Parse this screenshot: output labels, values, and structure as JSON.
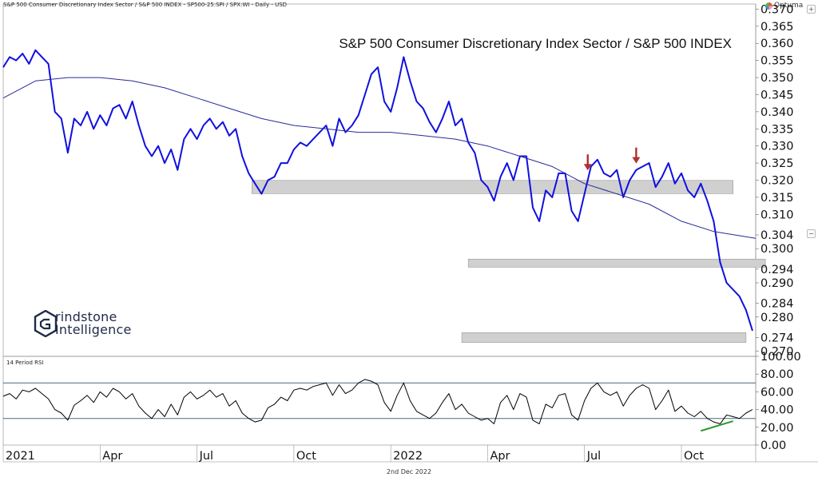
{
  "header": {
    "subtitle": "S&P 500 Consumer Discretionary Index Sector / S&P 500 INDEX - SP500-25:SPI / SPX:WI - Daily - USD",
    "brand": "Optuma"
  },
  "footer": {
    "date": "2nd Dec 2022"
  },
  "logo": {
    "line1": "rindstone",
    "line2": "Intelligence"
  },
  "side_buttons": [
    "+",
    "−"
  ],
  "colors": {
    "price": "#1010e0",
    "ma": "#2a2a9a",
    "rsi": "#000000",
    "arrow": "#b03030",
    "zone": "#d0d0d0",
    "divergence": "#2a9a2a"
  },
  "chart_data": [
    {
      "type": "line",
      "title": "S&P 500 Consumer Discretionary Index Sector / S&P 500 INDEX",
      "xlabel": "",
      "ylabel": "",
      "x_tick_labels": [
        "2021",
        "Apr",
        "Jul",
        "Oct",
        "2022",
        "Apr",
        "Jul",
        "Oct"
      ],
      "y_ticks": [
        0.37,
        0.365,
        0.36,
        0.355,
        0.35,
        0.345,
        0.34,
        0.335,
        0.33,
        0.325,
        0.32,
        0.315,
        0.31,
        0.304,
        0.3,
        0.294,
        0.29,
        0.284,
        0.28,
        0.274,
        0.27
      ],
      "y_tick_labels": [
        "0.370",
        "0.365",
        "0.360",
        "0.355",
        "0.350",
        "0.345",
        "0.340",
        "0.335",
        "0.330",
        "0.325",
        "0.320",
        "0.315",
        "0.310",
        "0.304",
        "0.300",
        "0.294",
        "0.290",
        "0.284",
        "0.280",
        "0.274",
        "0.270"
      ],
      "ylim": [
        0.2685,
        0.3715
      ],
      "xlim": [
        0,
        23.3
      ],
      "x_unit": "months since Jan 2021",
      "grid": false,
      "series": [
        {
          "name": "Ratio",
          "x": [
            0,
            0.2,
            0.4,
            0.6,
            0.8,
            1.0,
            1.2,
            1.4,
            1.6,
            1.8,
            2.0,
            2.2,
            2.4,
            2.6,
            2.8,
            3.0,
            3.2,
            3.4,
            3.6,
            3.8,
            4.0,
            4.2,
            4.4,
            4.6,
            4.8,
            5.0,
            5.2,
            5.4,
            5.6,
            5.8,
            6.0,
            6.2,
            6.4,
            6.6,
            6.8,
            7.0,
            7.2,
            7.4,
            7.6,
            7.8,
            8.0,
            8.2,
            8.4,
            8.6,
            8.8,
            9.0,
            9.2,
            9.4,
            9.6,
            9.8,
            10.0,
            10.2,
            10.4,
            10.6,
            10.8,
            11.0,
            11.2,
            11.4,
            11.6,
            11.8,
            12.0,
            12.2,
            12.4,
            12.6,
            12.8,
            13.0,
            13.2,
            13.4,
            13.6,
            13.8,
            14.0,
            14.2,
            14.4,
            14.6,
            14.8,
            15.0,
            15.2,
            15.4,
            15.6,
            15.8,
            16.0,
            16.2,
            16.4,
            16.6,
            16.8,
            17.0,
            17.2,
            17.4,
            17.6,
            17.8,
            18.0,
            18.2,
            18.4,
            18.6,
            18.8,
            19.0,
            19.2,
            19.4,
            19.6,
            19.8,
            20.0,
            20.2,
            20.4,
            20.6,
            20.8,
            21.0,
            21.2,
            21.4,
            21.6,
            21.8,
            22.0,
            22.2,
            22.4,
            22.6,
            22.8,
            23.0,
            23.2
          ],
          "values": [
            0.353,
            0.356,
            0.355,
            0.357,
            0.354,
            0.358,
            0.356,
            0.354,
            0.34,
            0.338,
            0.328,
            0.338,
            0.336,
            0.34,
            0.335,
            0.339,
            0.336,
            0.341,
            0.342,
            0.338,
            0.343,
            0.336,
            0.33,
            0.327,
            0.33,
            0.325,
            0.329,
            0.323,
            0.332,
            0.335,
            0.332,
            0.336,
            0.338,
            0.335,
            0.337,
            0.333,
            0.335,
            0.327,
            0.322,
            0.319,
            0.316,
            0.32,
            0.321,
            0.325,
            0.325,
            0.329,
            0.331,
            0.33,
            0.332,
            0.334,
            0.336,
            0.33,
            0.338,
            0.334,
            0.336,
            0.339,
            0.345,
            0.351,
            0.353,
            0.343,
            0.34,
            0.347,
            0.356,
            0.349,
            0.343,
            0.341,
            0.337,
            0.334,
            0.338,
            0.343,
            0.336,
            0.338,
            0.331,
            0.328,
            0.32,
            0.318,
            0.314,
            0.321,
            0.325,
            0.32,
            0.327,
            0.327,
            0.312,
            0.308,
            0.317,
            0.315,
            0.322,
            0.322,
            0.311,
            0.308,
            0.316,
            0.324,
            0.326,
            0.322,
            0.321,
            0.323,
            0.315,
            0.32,
            0.323,
            0.324,
            0.325,
            0.318,
            0.321,
            0.325,
            0.319,
            0.322,
            0.317,
            0.315,
            0.319,
            0.314,
            0.308,
            0.296,
            0.29,
            0.288,
            0.286,
            0.282,
            0.276
          ],
          "color": "#1010e0",
          "line_width": 2
        },
        {
          "name": "Moving Average",
          "x": [
            0,
            1,
            2,
            3,
            4,
            5,
            6,
            7,
            8,
            9,
            10,
            11,
            12,
            13,
            14,
            15,
            16,
            17,
            18,
            19,
            20,
            21,
            22,
            23.3
          ],
          "values": [
            0.344,
            0.349,
            0.35,
            0.35,
            0.349,
            0.347,
            0.344,
            0.341,
            0.338,
            0.336,
            0.335,
            0.334,
            0.334,
            0.333,
            0.332,
            0.33,
            0.327,
            0.324,
            0.319,
            0.316,
            0.313,
            0.308,
            0.305,
            0.303
          ],
          "color": "#2a2a9a",
          "line_width": 1
        }
      ],
      "annotations": {
        "support_zones": [
          {
            "x_start": 7.7,
            "x_end": 22.6,
            "y_low": 0.317,
            "y_high": 0.319
          },
          {
            "x_start": 14.4,
            "x_end": 23.6,
            "y_low": 0.2955,
            "y_high": 0.296
          },
          {
            "x_start": 14.2,
            "x_end": 23.0,
            "y_low": 0.2735,
            "y_high": 0.2745
          }
        ],
        "arrows": [
          {
            "x": 18.1,
            "y": 0.321
          },
          {
            "x": 19.6,
            "y": 0.323
          }
        ]
      }
    },
    {
      "type": "line",
      "title": "14 Period RSI",
      "xlabel": "",
      "ylabel": "",
      "y_ticks": [
        100,
        80,
        60,
        40,
        20,
        0
      ],
      "y_tick_labels": [
        "100.00",
        "80.00",
        "60.00",
        "40.00",
        "20.00",
        "0.00"
      ],
      "ylim": [
        0,
        100
      ],
      "xlim": [
        0,
        23.3
      ],
      "x_unit": "months since Jan 2021",
      "reference_lines": [
        70,
        30
      ],
      "grid": false,
      "series": [
        {
          "name": "RSI",
          "x": [
            0,
            0.2,
            0.4,
            0.6,
            0.8,
            1.0,
            1.2,
            1.4,
            1.6,
            1.8,
            2.0,
            2.2,
            2.4,
            2.6,
            2.8,
            3.0,
            3.2,
            3.4,
            3.6,
            3.8,
            4.0,
            4.2,
            4.4,
            4.6,
            4.8,
            5.0,
            5.2,
            5.4,
            5.6,
            5.8,
            6.0,
            6.2,
            6.4,
            6.6,
            6.8,
            7.0,
            7.2,
            7.4,
            7.6,
            7.8,
            8.0,
            8.2,
            8.4,
            8.6,
            8.8,
            9.0,
            9.2,
            9.4,
            9.6,
            9.8,
            10.0,
            10.2,
            10.4,
            10.6,
            10.8,
            11.0,
            11.2,
            11.4,
            11.6,
            11.8,
            12.0,
            12.2,
            12.4,
            12.6,
            12.8,
            13.0,
            13.2,
            13.4,
            13.6,
            13.8,
            14.0,
            14.2,
            14.4,
            14.6,
            14.8,
            15.0,
            15.2,
            15.4,
            15.6,
            15.8,
            16.0,
            16.2,
            16.4,
            16.6,
            16.8,
            17.0,
            17.2,
            17.4,
            17.6,
            17.8,
            18.0,
            18.2,
            18.4,
            18.6,
            18.8,
            19.0,
            19.2,
            19.4,
            19.6,
            19.8,
            20.0,
            20.2,
            20.4,
            20.6,
            20.8,
            21.0,
            21.2,
            21.4,
            21.6,
            21.8,
            22.0,
            22.2,
            22.4,
            22.6,
            22.8,
            23.0,
            23.2
          ],
          "values": [
            55,
            58,
            52,
            62,
            60,
            64,
            58,
            52,
            40,
            36,
            28,
            45,
            50,
            56,
            48,
            60,
            54,
            64,
            60,
            52,
            58,
            44,
            36,
            30,
            40,
            32,
            46,
            34,
            54,
            60,
            52,
            56,
            62,
            54,
            58,
            44,
            50,
            36,
            30,
            26,
            28,
            42,
            46,
            54,
            50,
            62,
            64,
            62,
            66,
            68,
            70,
            56,
            68,
            58,
            62,
            70,
            74,
            72,
            68,
            48,
            38,
            56,
            70,
            50,
            38,
            34,
            30,
            36,
            48,
            58,
            40,
            46,
            36,
            32,
            28,
            30,
            24,
            48,
            56,
            40,
            58,
            54,
            28,
            24,
            46,
            42,
            56,
            58,
            34,
            28,
            50,
            64,
            70,
            60,
            56,
            60,
            44,
            56,
            64,
            68,
            64,
            40,
            50,
            62,
            38,
            44,
            36,
            32,
            38,
            30,
            26,
            24,
            34,
            32,
            30,
            36,
            40
          ],
          "color": "#000000",
          "line_width": 1
        }
      ],
      "annotations": {
        "divergence_line": {
          "x_start": 21.6,
          "y_start": 16,
          "x_end": 22.6,
          "y_end": 27,
          "color": "#2a9a2a"
        }
      }
    }
  ]
}
